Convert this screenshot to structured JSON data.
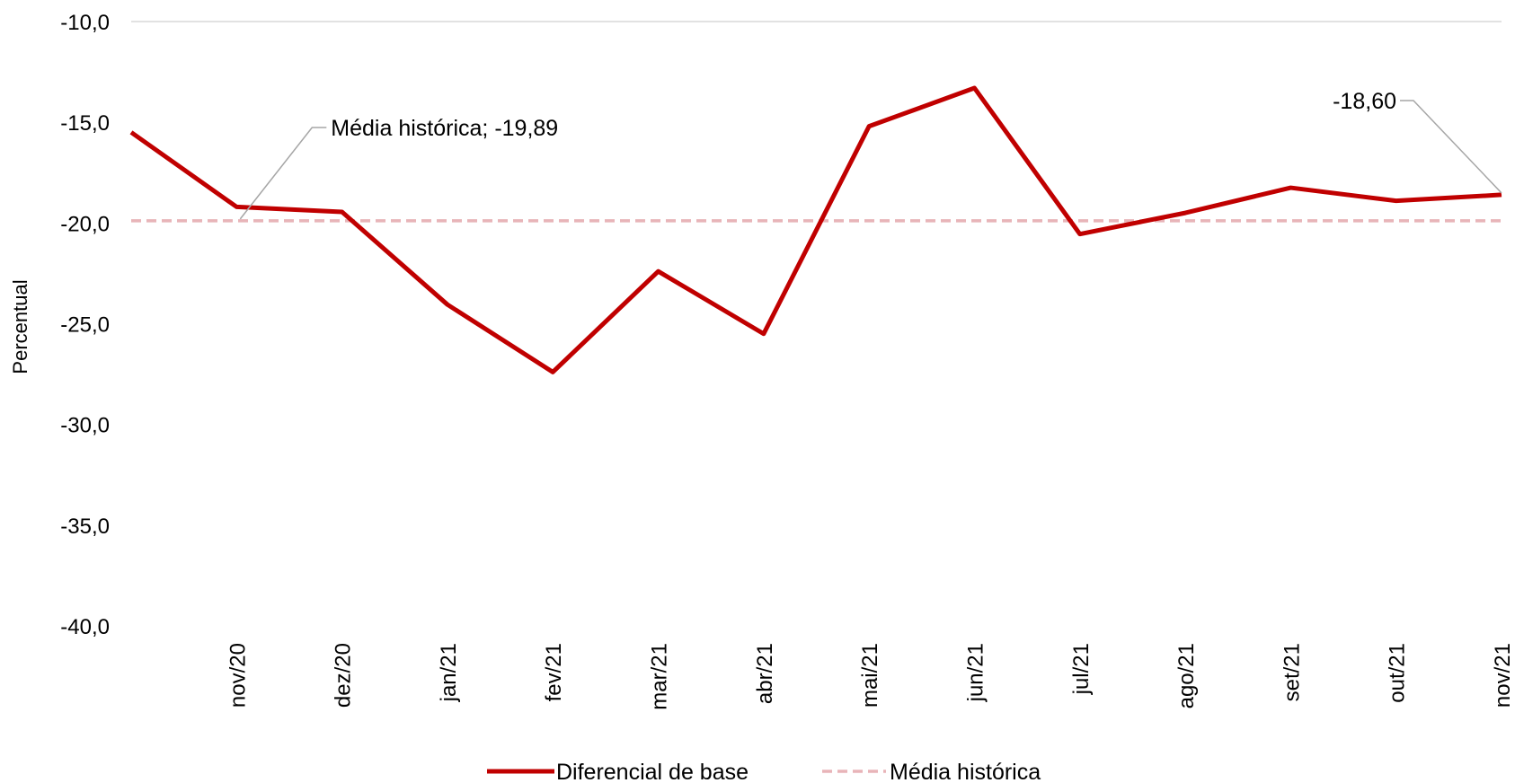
{
  "chart_data": {
    "type": "line",
    "title": "",
    "xlabel": "",
    "ylabel": "Percentual",
    "ylim": [
      -40,
      -10
    ],
    "ytick_step": 5,
    "ytick_labels": [
      "-10,0",
      "-15,0",
      "-20,0",
      "-25,0",
      "-30,0",
      "-35,0",
      "-40,0"
    ],
    "grid": "top-line-only",
    "legend_placement": "bottom",
    "categories": [
      "nov/20",
      "dez/20",
      "jan/21",
      "fev/21",
      "mar/21",
      "abr/21",
      "mai/21",
      "jun/21",
      "jul/21",
      "ago/21",
      "set/21",
      "out/21",
      "nov/21"
    ],
    "series": [
      {
        "name": "Diferencial de base",
        "color": "#C00000",
        "style": "solid",
        "start_value": -15.5,
        "values": [
          -19.2,
          -19.45,
          -24.05,
          -27.4,
          -22.4,
          -25.5,
          -15.2,
          -13.3,
          -20.55,
          -19.5,
          -18.25,
          -18.9,
          -18.6
        ]
      },
      {
        "name": "Média histórica",
        "color": "#E8B4B8",
        "style": "dashed",
        "values": [
          -19.89,
          -19.89,
          -19.89,
          -19.89,
          -19.89,
          -19.89,
          -19.89,
          -19.89,
          -19.89,
          -19.89,
          -19.89,
          -19.89,
          -19.89
        ]
      }
    ],
    "annotations": [
      {
        "text": "Média histórica; -19,89",
        "series": 1,
        "index": 0
      },
      {
        "text": "-18,60",
        "series": 0,
        "index": 12
      }
    ]
  }
}
